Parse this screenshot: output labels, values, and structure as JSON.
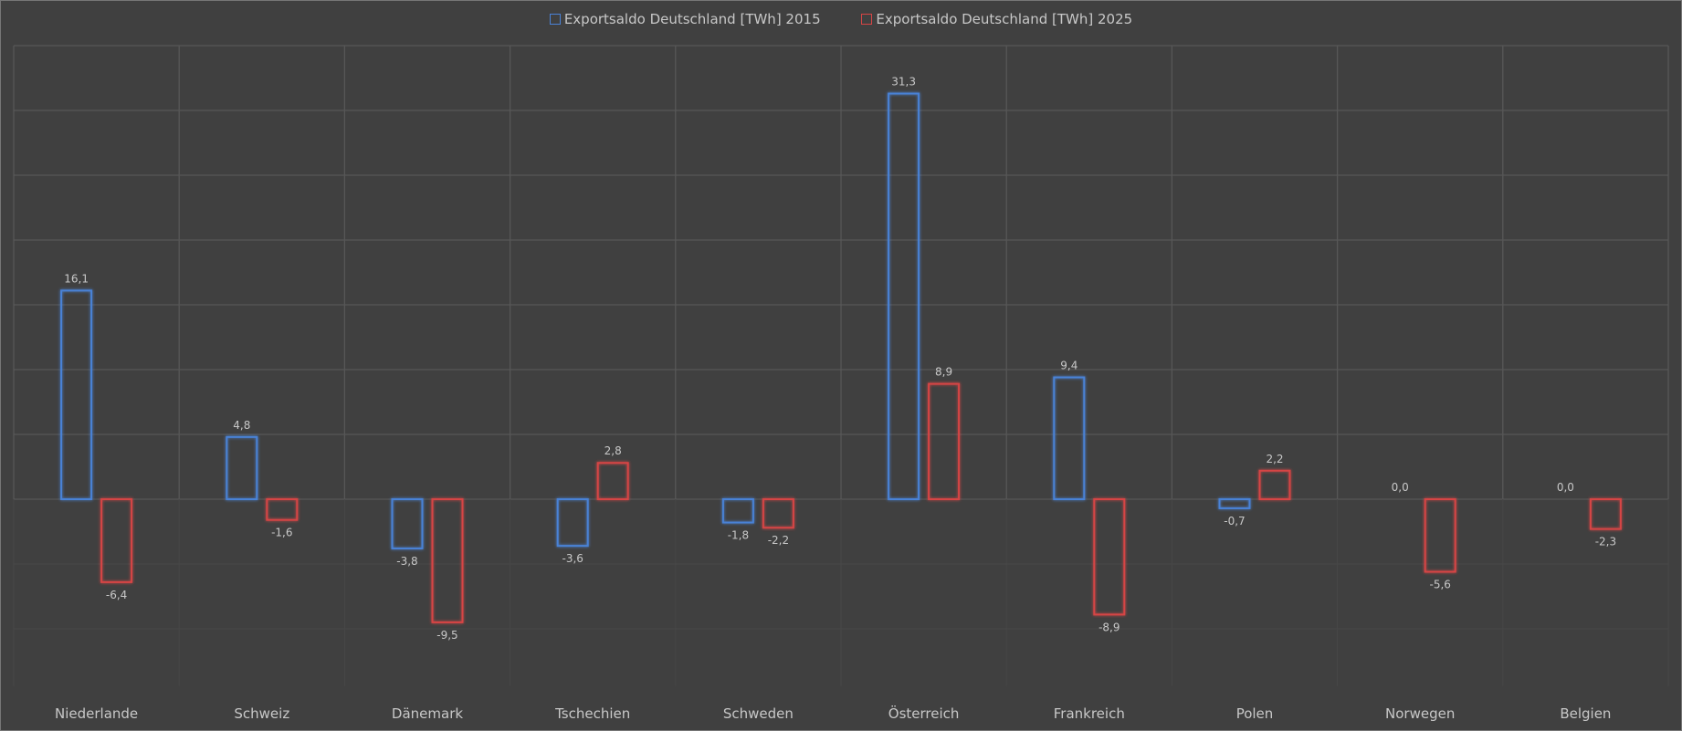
{
  "chart_data": {
    "type": "bar",
    "title": "",
    "xlabel": "",
    "ylabel": "",
    "ylim": [
      -13,
      35
    ],
    "grid": true,
    "legend_position": "top-center",
    "categories": [
      "Niederlande",
      "Schweiz",
      "Dänemark",
      "Tschechien",
      "Schweden",
      "Österreich",
      "Frankreich",
      "Polen",
      "Norwegen",
      "Belgien"
    ],
    "series": [
      {
        "name": "Exportsaldo Deutschland [TWh] 2015",
        "color": "#4a82d6",
        "values": [
          16.1,
          4.8,
          -3.8,
          -3.6,
          -1.8,
          31.3,
          9.4,
          -0.7,
          0.0,
          0.0
        ],
        "labels": [
          "16,1",
          "4,8",
          "-3,8",
          "-3,6",
          "-1,8",
          "31,3",
          "9,4",
          "-0,7",
          "0,0",
          "0,0"
        ]
      },
      {
        "name": "Exportsaldo Deutschland [TWh] 2025",
        "color": "#d64545",
        "values": [
          -6.4,
          -1.6,
          -9.5,
          2.8,
          -2.2,
          8.9,
          -8.9,
          2.2,
          -5.6,
          -2.3
        ],
        "labels": [
          "-6,4",
          "-1,6",
          "-9,5",
          "2,8",
          "-2,2",
          "8,9",
          "-8,9",
          "2,2",
          "-5,6",
          "-2,3"
        ]
      }
    ]
  }
}
